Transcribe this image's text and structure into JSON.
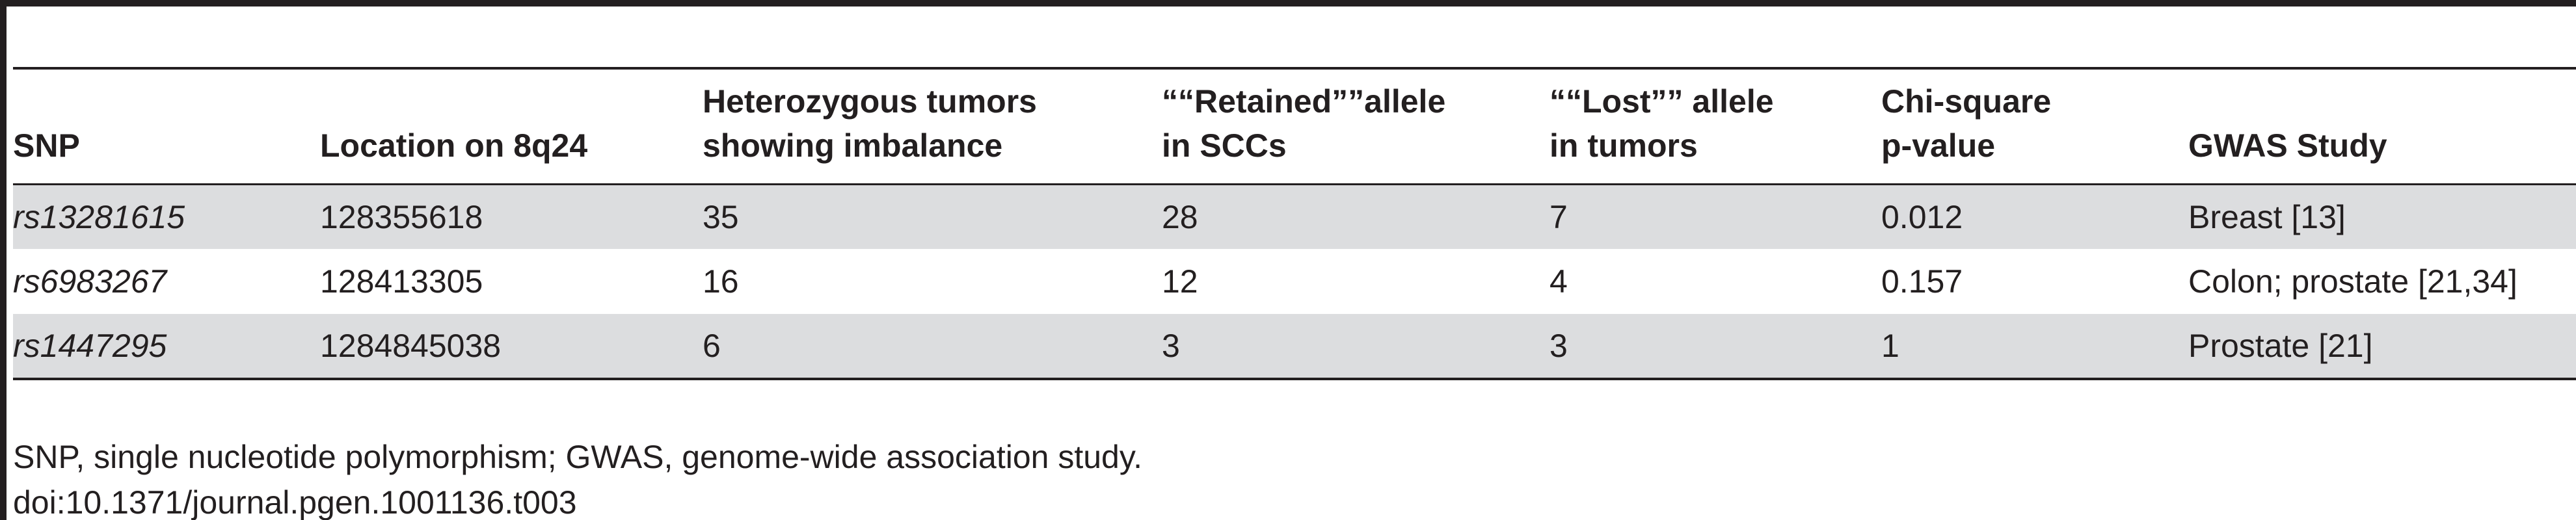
{
  "table": {
    "headers": [
      [
        "SNP"
      ],
      [
        "Location on 8q24"
      ],
      [
        "Heterozygous tumors",
        "showing imbalance"
      ],
      [
        "““Retained””allele",
        "in SCCs"
      ],
      [
        "““Lost”” allele",
        "in tumors"
      ],
      [
        "Chi-square",
        "p-value"
      ],
      [
        "GWAS Study"
      ]
    ],
    "rows": [
      [
        "rs13281615",
        "128355618",
        "35",
        "28",
        "7",
        "0.012",
        "Breast [13]"
      ],
      [
        "rs6983267",
        "128413305",
        "16",
        "12",
        "4",
        "0.157",
        "Colon; prostate [21,34]"
      ],
      [
        "rs1447295",
        "1284845038",
        "6",
        "3",
        "3",
        "1",
        "Prostate [21]"
      ]
    ]
  },
  "footnote": {
    "abbreviations": "SNP, single nucleotide polymorphism; GWAS, genome-wide association study.",
    "doi": "doi:10.1371/journal.pgen.1001136.t003"
  }
}
